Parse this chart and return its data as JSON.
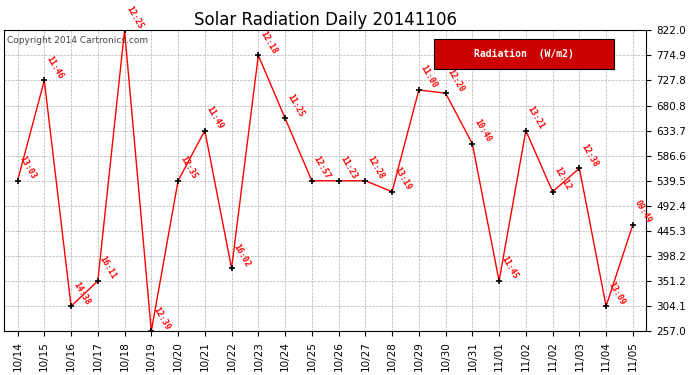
{
  "title": "Solar Radiation Daily 20141106",
  "copyright": "Copyright 2014 Cartronics.com",
  "legend_label": "Radiation  (W/m2)",
  "ylim": [
    257.0,
    822.0
  ],
  "yticks": [
    257.0,
    304.1,
    351.2,
    398.2,
    445.3,
    492.4,
    539.5,
    586.6,
    633.7,
    680.8,
    727.8,
    774.9,
    822.0
  ],
  "dates": [
    "10/14",
    "10/15",
    "10/16",
    "10/17",
    "10/18",
    "10/19",
    "10/20",
    "10/21",
    "10/22",
    "10/23",
    "10/24",
    "10/25",
    "10/26",
    "10/27",
    "10/28",
    "10/29",
    "10/30",
    "10/31",
    "11/01",
    "11/02",
    "11/02",
    "11/03",
    "11/04",
    "11/05"
  ],
  "x_indices": [
    0,
    1,
    2,
    3,
    4,
    5,
    6,
    7,
    8,
    9,
    10,
    11,
    12,
    13,
    14,
    15,
    16,
    17,
    18,
    19,
    20,
    21,
    22,
    23
  ],
  "values": [
    539.5,
    727.8,
    304.1,
    351.2,
    822.0,
    257.0,
    539.5,
    633.7,
    375.0,
    774.9,
    657.0,
    539.5,
    539.5,
    539.5,
    519.0,
    710.0,
    704.0,
    609.0,
    351.2,
    633.7,
    519.0,
    563.0,
    304.1,
    457.0
  ],
  "labels": [
    "13:03",
    "11:46",
    "14:38",
    "16:11",
    "12:25",
    "12:39",
    "12:35",
    "11:49",
    "16:02",
    "12:18",
    "11:25",
    "12:57",
    "11:23",
    "12:28",
    "13:19",
    "11:00",
    "12:20",
    "10:40",
    "11:45",
    "13:21",
    "12:12",
    "12:38",
    "13:09",
    "09:49"
  ],
  "line_color": "#ff0000",
  "marker_color": "#000000",
  "label_color": "#ff0000",
  "bg_color": "#ffffff",
  "grid_color": "#b0b0b0",
  "legend_bg": "#cc0000",
  "legend_text_color": "#ffffff",
  "title_fontsize": 12,
  "label_fontsize": 6,
  "tick_fontsize": 7.5,
  "copyright_fontsize": 6.5
}
